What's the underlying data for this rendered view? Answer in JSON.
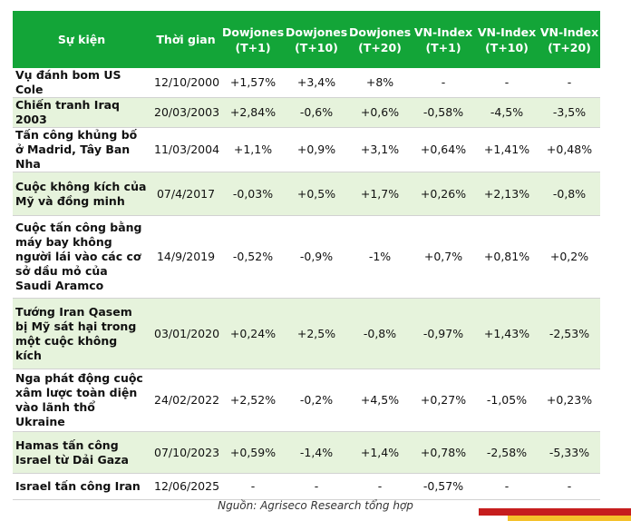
{
  "table": {
    "headers": [
      "Sự kiện",
      "Thời gian",
      "Dowjones (T+1)",
      "Dowjones (T+10)",
      "Dowjones (T+20)",
      "VN-Index (T+1)",
      "VN-Index (T+10)",
      "VN-Index (T+20)"
    ],
    "rows": [
      {
        "event": "Vụ đánh bom US Cole",
        "date": "12/10/2000",
        "dj1": "+1,57%",
        "dj10": "+3,4%",
        "dj20": "+8%",
        "vn1": "-",
        "vn10": "-",
        "vn20": "-"
      },
      {
        "event": "Chiến tranh Iraq 2003",
        "date": "20/03/2003",
        "dj1": "+2,84%",
        "dj10": "-0,6%",
        "dj20": "+0,6%",
        "vn1": "-0,58%",
        "vn10": "-4,5%",
        "vn20": "-3,5%"
      },
      {
        "event": "Tấn công khủng bố ở Madrid, Tây Ban Nha",
        "date": "11/03/2004",
        "dj1": "+1,1%",
        "dj10": "+0,9%",
        "dj20": "+3,1%",
        "vn1": "+0,64%",
        "vn10": "+1,41%",
        "vn20": "+0,48%"
      },
      {
        "event": "Cuộc không kích của Mỹ và đồng minh",
        "date": "07/4/2017",
        "dj1": "-0,03%",
        "dj10": "+0,5%",
        "dj20": "+1,7%",
        "vn1": "+0,26%",
        "vn10": "+2,13%",
        "vn20": "-0,8%"
      },
      {
        "event": "Cuộc tấn công bằng máy bay không người lái vào các cơ sở dầu mỏ của Saudi Aramco",
        "date": "14/9/2019",
        "dj1": "-0,52%",
        "dj10": "-0,9%",
        "dj20": "-1%",
        "vn1": "+0,7%",
        "vn10": "+0,81%",
        "vn20": "+0,2%"
      },
      {
        "event": "Tướng Iran Qasem bị Mỹ sát hại trong một cuộc không kích",
        "date": "03/01/2020",
        "dj1": "+0,24%",
        "dj10": "+2,5%",
        "dj20": "-0,8%",
        "vn1": "-0,97%",
        "vn10": "+1,43%",
        "vn20": "-2,53%"
      },
      {
        "event": "Nga phát động cuộc xâm lược toàn diện vào lãnh thổ Ukraine",
        "date": "24/02/2022",
        "dj1": "+2,52%",
        "dj10": "-0,2%",
        "dj20": "+4,5%",
        "vn1": "+0,27%",
        "vn10": "-1,05%",
        "vn20": "+0,23%"
      },
      {
        "event": "Hamas tấn công Israel từ Dải Gaza",
        "date": "07/10/2023",
        "dj1": "+0,59%",
        "dj10": "-1,4%",
        "dj20": "+1,4%",
        "vn1": "+0,78%",
        "vn10": "-2,58%",
        "vn20": "-5,33%"
      },
      {
        "event": "Israel tấn công Iran",
        "date": "12/06/2025",
        "dj1": "-",
        "dj10": "-",
        "dj20": "-",
        "vn1": "-0,57%",
        "vn10": "-",
        "vn20": "-"
      }
    ]
  },
  "source": "Nguồn: Agriseco Research tổng hợp",
  "colors": {
    "header_bg": "#13a538",
    "row_shade": "#e6f3dc",
    "positive": "#1a9a2d",
    "negative": "#e0201b"
  }
}
